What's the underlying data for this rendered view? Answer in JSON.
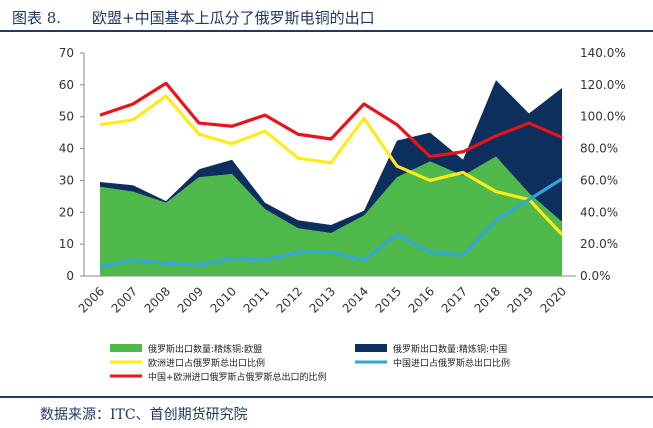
{
  "header": {
    "figure_label": "图表 8.",
    "title": "欧盟+中国基本上瓜分了俄罗斯电铜的出口"
  },
  "footer": {
    "source": "数据来源：ITC、首创期货研究院"
  },
  "chart_data": {
    "type": "area",
    "x": [
      "2006",
      "2007",
      "2008",
      "2009",
      "2010",
      "2011",
      "2012",
      "2013",
      "2014",
      "2015",
      "2016",
      "2017",
      "2018",
      "2019",
      "2020"
    ],
    "ylim_left": [
      0,
      70
    ],
    "yticks_left": [
      "0",
      "10",
      "20",
      "30",
      "40",
      "50",
      "60",
      "70"
    ],
    "ylim_right": [
      0,
      1.4
    ],
    "yticks_right": [
      "0.0%",
      "20.0%",
      "40.0%",
      "60.0%",
      "80.0%",
      "100.0%",
      "120.0%",
      "140.0%"
    ],
    "grid": false,
    "legend_position": "bottom",
    "series": [
      {
        "name": "俄罗斯出口数量:精炼铜:欧盟",
        "type": "area",
        "axis": "left",
        "color": "#4fb84a",
        "values": [
          28,
          26.5,
          23,
          31,
          32,
          21,
          15,
          13.5,
          19,
          31,
          36,
          31.5,
          37.5,
          26,
          17
        ]
      },
      {
        "name": "俄罗斯出口数量:精炼铜:中国",
        "type": "area",
        "axis": "left",
        "color": "#0c2f5e",
        "values": [
          1.5,
          2,
          0.5,
          2.5,
          4.5,
          2,
          2.5,
          2.5,
          1.5,
          11.5,
          9,
          5,
          24,
          25,
          42
        ]
      },
      {
        "name": "欧洲进口占俄罗斯总出口比例",
        "type": "line",
        "axis": "right",
        "color": "#ffeb1a",
        "values": [
          0.95,
          0.98,
          1.13,
          0.89,
          0.83,
          0.91,
          0.74,
          0.71,
          0.99,
          0.69,
          0.6,
          0.65,
          0.53,
          0.48,
          0.26
        ]
      },
      {
        "name": "中国进口占俄罗斯总出口比例",
        "type": "line",
        "axis": "right",
        "color": "#31a6db",
        "values": [
          0.06,
          0.1,
          0.08,
          0.07,
          0.11,
          0.1,
          0.15,
          0.15,
          0.1,
          0.26,
          0.15,
          0.13,
          0.35,
          0.48,
          0.61
        ]
      },
      {
        "name": "中国+欧洲进口俄罗斯占俄罗斯总出口的比例",
        "type": "line",
        "axis": "right",
        "color": "#e8141a",
        "values": [
          1.01,
          1.08,
          1.21,
          0.96,
          0.94,
          1.01,
          0.89,
          0.86,
          1.08,
          0.95,
          0.75,
          0.78,
          0.88,
          0.96,
          0.87
        ]
      }
    ]
  }
}
